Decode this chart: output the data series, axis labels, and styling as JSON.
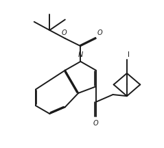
{
  "bg_color": "#ffffff",
  "line_color": "#1a1a1a",
  "line_width": 1.4,
  "figsize": [
    2.39,
    2.16
  ],
  "dpi": 100,
  "label_I": "I",
  "label_O_ester": "O",
  "label_O_carbonyl_boc": "O",
  "label_O_ketone": "O",
  "label_N": "N"
}
